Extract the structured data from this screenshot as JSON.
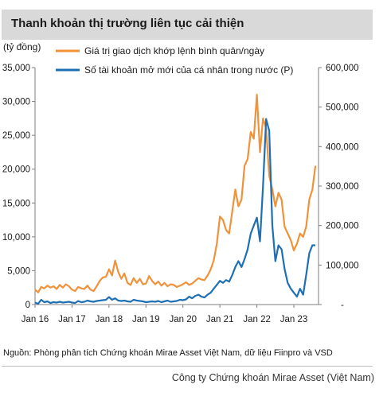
{
  "title": "Thanh khoản thị trường liên tục cải thiện",
  "source": "Nguồn: Phòng phân tích Chứng khoán Mirae Asset Việt Nam, dữ liệu Fiinpro và VSD",
  "footer": "Công ty Chứng khoán Mirae Asset (Việt Nam)",
  "colors": {
    "series_1": "#f0923a",
    "series_2": "#1f6fb4",
    "axis": "#7f7f7f"
  },
  "chart_data": {
    "type": "line",
    "unit_label": "(tỷ đồng)",
    "legend_position": "top",
    "grid": false,
    "x_ticks": [
      "Jan 16",
      "Jan 17",
      "Jan 18",
      "Jan 19",
      "Jan 20",
      "Jan 21",
      "Jan 22",
      "Jan 23"
    ],
    "y_left": {
      "ticks": [
        "0",
        "5,000",
        "10,000",
        "15,000",
        "20,000",
        "25,000",
        "30,000",
        "35,000"
      ],
      "range": [
        0,
        35000
      ]
    },
    "y_right": {
      "ticks": [
        "-",
        "100,000",
        "200,000",
        "300,000",
        "400,000",
        "500,000",
        "600,000"
      ],
      "range": [
        0,
        600000
      ]
    },
    "series": [
      {
        "name": "Giá trị giao dịch khớp lệnh bình quân/ngày",
        "axis": "left",
        "x": [
          "2016-01",
          "2016-02",
          "2016-03",
          "2016-04",
          "2016-05",
          "2016-06",
          "2016-07",
          "2016-08",
          "2016-09",
          "2016-10",
          "2016-11",
          "2016-12",
          "2017-01",
          "2017-02",
          "2017-03",
          "2017-04",
          "2017-05",
          "2017-06",
          "2017-07",
          "2017-08",
          "2017-09",
          "2017-10",
          "2017-11",
          "2017-12",
          "2018-01",
          "2018-02",
          "2018-03",
          "2018-04",
          "2018-05",
          "2018-06",
          "2018-07",
          "2018-08",
          "2018-09",
          "2018-10",
          "2018-11",
          "2018-12",
          "2019-01",
          "2019-02",
          "2019-03",
          "2019-04",
          "2019-05",
          "2019-06",
          "2019-07",
          "2019-08",
          "2019-09",
          "2019-10",
          "2019-11",
          "2019-12",
          "2020-01",
          "2020-02",
          "2020-03",
          "2020-04",
          "2020-05",
          "2020-06",
          "2020-07",
          "2020-08",
          "2020-09",
          "2020-10",
          "2020-11",
          "2020-12",
          "2021-01",
          "2021-02",
          "2021-03",
          "2021-04",
          "2021-05",
          "2021-06",
          "2021-07",
          "2021-08",
          "2021-09",
          "2021-10",
          "2021-11",
          "2021-12",
          "2022-01",
          "2022-02",
          "2022-03",
          "2022-04",
          "2022-05",
          "2022-06",
          "2022-07",
          "2022-08",
          "2022-09",
          "2022-10",
          "2022-11",
          "2022-12",
          "2023-01",
          "2023-02",
          "2023-03",
          "2023-04",
          "2023-05",
          "2023-06",
          "2023-07",
          "2023-08"
        ],
        "values": [
          2200,
          1800,
          2600,
          2400,
          2800,
          2500,
          2700,
          2300,
          2900,
          2500,
          3000,
          2700,
          2200,
          2000,
          2600,
          2400,
          2300,
          2800,
          2200,
          2000,
          2700,
          3500,
          4000,
          4100,
          5200,
          4300,
          6500,
          4800,
          3800,
          4600,
          3200,
          2900,
          3900,
          3200,
          3800,
          3000,
          3100,
          4200,
          3500,
          3000,
          3400,
          2800,
          3200,
          2700,
          3000,
          2900,
          2600,
          2800,
          3000,
          3300,
          2900,
          3100,
          3500,
          3900,
          3700,
          3600,
          4300,
          5200,
          6500,
          9000,
          13000,
          12500,
          11000,
          10500,
          13800,
          17000,
          14500,
          15500,
          20500,
          21500,
          25500,
          24500,
          31000,
          22500,
          27500,
          26000,
          19000,
          17000,
          14500,
          16500,
          15500,
          11500,
          10500,
          9500,
          8000,
          9000,
          10500,
          10000,
          11500,
          15500,
          17000,
          20500
        ]
      },
      {
        "name": "Số tài khoản mở mới của cá nhân trong nước (P)",
        "axis": "right",
        "x": [
          "2016-01",
          "2016-02",
          "2016-03",
          "2016-04",
          "2016-05",
          "2016-06",
          "2016-07",
          "2016-08",
          "2016-09",
          "2016-10",
          "2016-11",
          "2016-12",
          "2017-01",
          "2017-02",
          "2017-03",
          "2017-04",
          "2017-05",
          "2017-06",
          "2017-07",
          "2017-08",
          "2017-09",
          "2017-10",
          "2017-11",
          "2017-12",
          "2018-01",
          "2018-02",
          "2018-03",
          "2018-04",
          "2018-05",
          "2018-06",
          "2018-07",
          "2018-08",
          "2018-09",
          "2018-10",
          "2018-11",
          "2018-12",
          "2019-01",
          "2019-02",
          "2019-03",
          "2019-04",
          "2019-05",
          "2019-06",
          "2019-07",
          "2019-08",
          "2019-09",
          "2019-10",
          "2019-11",
          "2019-12",
          "2020-01",
          "2020-02",
          "2020-03",
          "2020-04",
          "2020-05",
          "2020-06",
          "2020-07",
          "2020-08",
          "2020-09",
          "2020-10",
          "2020-11",
          "2020-12",
          "2021-01",
          "2021-02",
          "2021-03",
          "2021-04",
          "2021-05",
          "2021-06",
          "2021-07",
          "2021-08",
          "2021-09",
          "2021-10",
          "2021-11",
          "2021-12",
          "2022-01",
          "2022-02",
          "2022-03",
          "2022-04",
          "2022-05",
          "2022-06",
          "2022-07",
          "2022-08",
          "2022-09",
          "2022-10",
          "2022-11",
          "2022-12",
          "2023-01",
          "2023-02",
          "2023-03",
          "2023-04",
          "2023-05",
          "2023-06",
          "2023-07",
          "2023-08"
        ],
        "values": [
          5000,
          2000,
          12000,
          6000,
          8000,
          4000,
          6000,
          5000,
          7000,
          5000,
          6000,
          7000,
          5000,
          4000,
          9000,
          6000,
          7000,
          10000,
          8000,
          7000,
          9000,
          10000,
          11000,
          12000,
          19000,
          12000,
          16000,
          10000,
          9000,
          10000,
          8000,
          7000,
          12000,
          10000,
          9000,
          8000,
          6000,
          7000,
          8000,
          7000,
          9000,
          6000,
          8000,
          10000,
          7000,
          8000,
          9000,
          12000,
          11000,
          13000,
          20000,
          16000,
          22000,
          25000,
          20000,
          18000,
          25000,
          30000,
          40000,
          50000,
          60000,
          55000,
          62000,
          58000,
          75000,
          95000,
          110000,
          95000,
          115000,
          140000,
          180000,
          200000,
          220000,
          160000,
          300000,
          470000,
          440000,
          200000,
          110000,
          150000,
          140000,
          90000,
          55000,
          40000,
          30000,
          20000,
          40000,
          25000,
          75000,
          130000,
          150000,
          150000
        ]
      }
    ]
  }
}
